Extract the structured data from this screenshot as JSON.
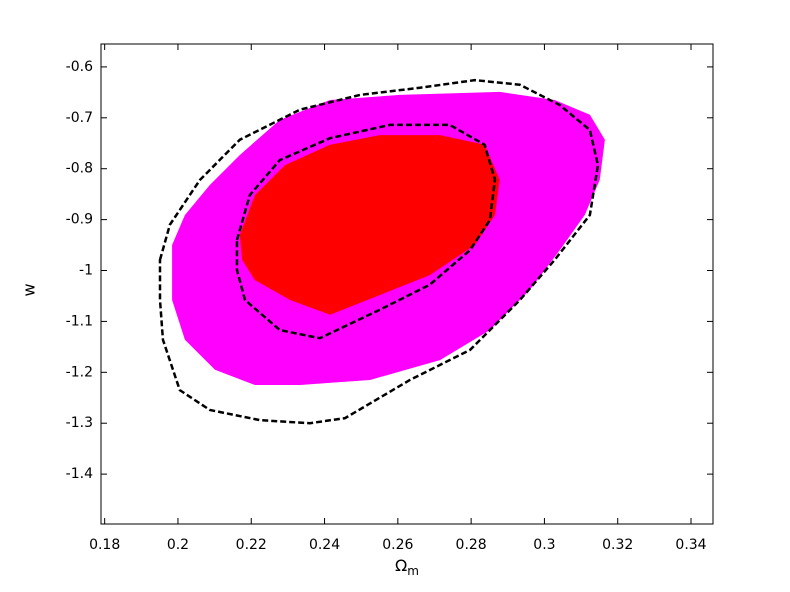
{
  "chart_data": {
    "type": "contour",
    "xlabel": {
      "symbol": "Ω",
      "subscript": "m"
    },
    "ylabel": "w",
    "xlim": [
      0.179,
      0.346
    ],
    "ylim": [
      -1.498,
      -0.555
    ],
    "xticks": [
      0.18,
      0.2,
      0.22,
      0.24,
      0.26,
      0.28,
      0.3,
      0.32,
      0.34
    ],
    "yticks": [
      -1.4,
      -1.3,
      -1.2,
      -1.1,
      -1,
      -0.9,
      -0.8,
      -0.7,
      -0.6
    ],
    "series": [
      {
        "color": "#ff00ff",
        "style": "filled",
        "x": [
          0.1984,
          0.2019,
          0.2087,
          0.2169,
          0.2278,
          0.2415,
          0.2606,
          0.2878,
          0.3028,
          0.3124,
          0.3165,
          0.3151,
          0.311,
          0.3042,
          0.296,
          0.2851,
          0.2715,
          0.2524,
          0.2333,
          0.221,
          0.2101,
          0.2019,
          0.1984,
          0.1984
        ],
        "y": [
          -0.95,
          -0.891,
          -0.832,
          -0.773,
          -0.704,
          -0.665,
          -0.655,
          -0.649,
          -0.665,
          -0.694,
          -0.743,
          -0.822,
          -0.891,
          -0.96,
          -1.038,
          -1.117,
          -1.176,
          -1.215,
          -1.225,
          -1.225,
          -1.195,
          -1.136,
          -1.058,
          -0.999
        ]
      },
      {
        "color": "#ff0000",
        "style": "filled",
        "x": [
          0.2169,
          0.221,
          0.2292,
          0.2415,
          0.2551,
          0.2715,
          0.2837,
          0.2878,
          0.2865,
          0.281,
          0.2687,
          0.2551,
          0.2415,
          0.2306,
          0.221,
          0.2175
        ],
        "y": [
          -0.93,
          -0.852,
          -0.793,
          -0.753,
          -0.734,
          -0.734,
          -0.753,
          -0.822,
          -0.891,
          -0.95,
          -1.009,
          -1.048,
          -1.087,
          -1.058,
          -1.019,
          -0.979
        ]
      },
      {
        "color": "#000000",
        "style": "dashed",
        "x": [
          0.1951,
          0.1978,
          0.206,
          0.2169,
          0.2333,
          0.2497,
          0.266,
          0.281,
          0.2933,
          0.3042,
          0.3124,
          0.3146,
          0.3124,
          0.3028,
          0.2933,
          0.2797,
          0.2633,
          0.2456,
          0.236,
          0.2224,
          0.2087,
          0.2005,
          0.1959,
          0.1951
        ],
        "y": [
          -0.979,
          -0.91,
          -0.822,
          -0.743,
          -0.684,
          -0.655,
          -0.641,
          -0.626,
          -0.635,
          -0.675,
          -0.724,
          -0.793,
          -0.891,
          -0.979,
          -1.058,
          -1.156,
          -1.215,
          -1.29,
          -1.3,
          -1.294,
          -1.274,
          -1.235,
          -1.136,
          -1.058
        ]
      },
      {
        "color": "#000000",
        "style": "dashed",
        "x": [
          0.2161,
          0.2196,
          0.2278,
          0.2415,
          0.2578,
          0.2742,
          0.2837,
          0.2865,
          0.2851,
          0.2797,
          0.2687,
          0.2551,
          0.2387,
          0.2278,
          0.2183,
          0.2161
        ],
        "y": [
          -0.94,
          -0.852,
          -0.783,
          -0.74,
          -0.714,
          -0.714,
          -0.753,
          -0.822,
          -0.901,
          -0.96,
          -1.028,
          -1.077,
          -1.133,
          -1.117,
          -1.058,
          -0.999
        ]
      }
    ]
  }
}
